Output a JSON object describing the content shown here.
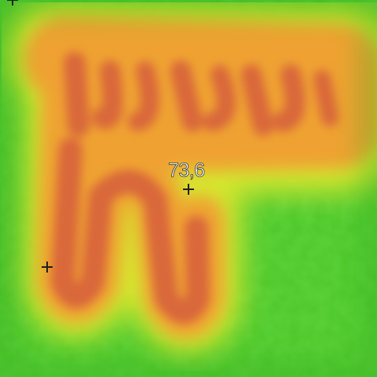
{
  "measurement": {
    "spot_value": "73,6"
  },
  "palette": {
    "cold": "#2fae1f",
    "cool": "#5ad630",
    "mid": "#d8e62c",
    "warm": "#f0a030",
    "hot": "#d9683a"
  },
  "markers": [
    {
      "name": "spot-crosshair-center"
    },
    {
      "name": "spot-crosshair-left"
    },
    {
      "name": "spot-crosshair-corner"
    }
  ]
}
